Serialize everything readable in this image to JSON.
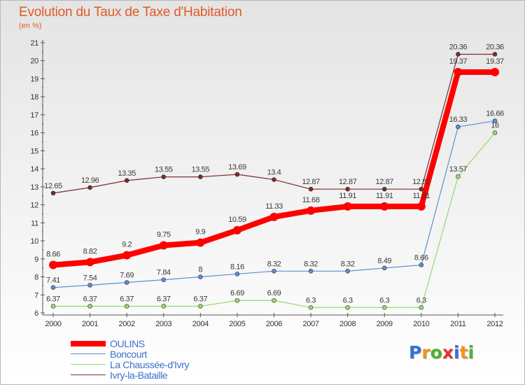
{
  "title": "Evolution du Taux de Taxe d'Habitation",
  "subtitle": "(en %)",
  "logo": {
    "text": "Proxiti",
    "letters": [
      {
        "ch": "P",
        "color": "#3a6fd0"
      },
      {
        "ch": "r",
        "color": "#f0941e"
      },
      {
        "ch": "o",
        "color": "#52b030"
      },
      {
        "ch": "x",
        "color": "#e6312c"
      },
      {
        "ch": "i",
        "color": "#3a6fd0"
      },
      {
        "ch": "t",
        "color": "#f0941e"
      },
      {
        "ch": "i",
        "color": "#52b030"
      }
    ]
  },
  "chart_data": {
    "type": "line",
    "title": "Evolution du Taux de Taxe d'Habitation",
    "ylabel": "(en %)",
    "xlabel": "",
    "x": [
      "2000",
      "2001",
      "2002",
      "2003",
      "2004",
      "2005",
      "2006",
      "2007",
      "2008",
      "2009",
      "2010",
      "2011",
      "2012"
    ],
    "y_ticks": [
      "6",
      "7",
      "8",
      "9",
      "10",
      "11",
      "12",
      "13",
      "14",
      "15",
      "16",
      "17",
      "18",
      "19",
      "20",
      "21"
    ],
    "ylim": [
      6,
      21
    ],
    "legend_position": "bottom-left",
    "series": [
      {
        "name": "Ivry-la-Bataille",
        "color": "#7a2c2c",
        "width": 1.2,
        "values": [
          12.65,
          12.96,
          13.35,
          13.55,
          13.55,
          13.69,
          13.4,
          12.87,
          12.87,
          12.87,
          12.87,
          20.36,
          20.36
        ],
        "labels": [
          "12.65",
          "12.96",
          "13.35",
          "13.55",
          "13.55",
          "13.69",
          "13.4",
          "12.87",
          "12.87",
          "12.87",
          "12.87",
          "20.36",
          "20.36"
        ]
      },
      {
        "name": "Boncourt",
        "color": "#5b8fd0",
        "width": 1.2,
        "values": [
          7.41,
          7.54,
          7.69,
          7.84,
          8,
          8.16,
          8.32,
          8.32,
          8.32,
          8.49,
          8.66,
          16.33,
          16.66
        ],
        "labels": [
          "7.41",
          "7.54",
          "7.69",
          "7.84",
          "8",
          "8.16",
          "8.32",
          "8.32",
          "8.32",
          "8.49",
          "8.66",
          "16.33",
          "16.66"
        ]
      },
      {
        "name": "La Chaussée-d'Ivry",
        "color": "#98d870",
        "width": 1.2,
        "values": [
          6.37,
          6.37,
          6.37,
          6.37,
          6.37,
          6.69,
          6.69,
          6.3,
          6.3,
          6.3,
          6.3,
          13.57,
          16
        ],
        "labels": [
          "6.37",
          "6.37",
          "6.37",
          "6.37",
          "6.37",
          "6.69",
          "6.69",
          "6.3",
          "6.3",
          "6.3",
          "6.3",
          "13.57",
          "16"
        ]
      },
      {
        "name": "OULINS",
        "color": "#ff0000",
        "width": 8,
        "values": [
          8.66,
          8.82,
          9.2,
          9.75,
          9.9,
          10.59,
          11.33,
          11.68,
          11.91,
          11.91,
          11.91,
          19.37,
          19.37
        ],
        "labels": [
          "8.66",
          "8.82",
          "9.2",
          "9.75",
          "9.9",
          "10.59",
          "11.33",
          "11.68",
          "11.91",
          "11.91",
          "11.91",
          "19.37",
          "19.37"
        ]
      }
    ],
    "legend": [
      {
        "name": "OULINS",
        "color": "#ff0000",
        "width": 8
      },
      {
        "name": "Boncourt",
        "color": "#5b8fd0",
        "width": 1.5
      },
      {
        "name": "La Chaussée-d'Ivry",
        "color": "#98d870",
        "width": 1.5
      },
      {
        "name": "Ivry-la-Bataille",
        "color": "#7a2c2c",
        "width": 1.5
      }
    ]
  }
}
